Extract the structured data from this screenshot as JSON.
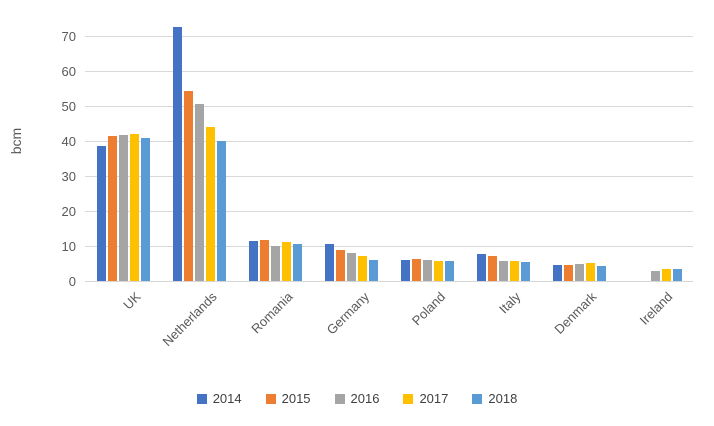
{
  "chart_data": {
    "type": "bar",
    "title": "",
    "xlabel": "",
    "ylabel": "bcm",
    "ylim": [
      0,
      75
    ],
    "y_ticks": [
      0,
      10,
      20,
      30,
      40,
      50,
      60,
      70
    ],
    "grid": true,
    "legend_position": "bottom",
    "categories": [
      "UK",
      "Netherlands",
      "Romania",
      "Germany",
      "Poland",
      "Italy",
      "Denmark",
      "Ireland"
    ],
    "series": [
      {
        "name": "2014",
        "color": "#4472C4",
        "values": [
          38.5,
          72.5,
          11.4,
          10.5,
          6.1,
          7.6,
          4.5,
          0
        ]
      },
      {
        "name": "2015",
        "color": "#ED7D31",
        "values": [
          41.4,
          54.3,
          11.7,
          8.9,
          6.3,
          7.2,
          4.7,
          0
        ]
      },
      {
        "name": "2016",
        "color": "#A5A5A5",
        "values": [
          41.7,
          50.5,
          10.1,
          8.1,
          6.1,
          5.8,
          4.9,
          2.9
        ]
      },
      {
        "name": "2017",
        "color": "#FFC000",
        "values": [
          42.0,
          44.0,
          11.0,
          7.2,
          5.6,
          5.8,
          5.2,
          3.4
        ]
      },
      {
        "name": "2018",
        "color": "#5B9BD5",
        "values": [
          40.8,
          39.9,
          10.5,
          6.1,
          5.8,
          5.5,
          4.2,
          3.4
        ]
      }
    ]
  },
  "style": {
    "background": "#FFFFFF",
    "gridline_color": "#D9D9D9",
    "axis_line_color": "#D6D6D6",
    "tick_label_color": "#595959",
    "legend_text_color": "#404040"
  }
}
